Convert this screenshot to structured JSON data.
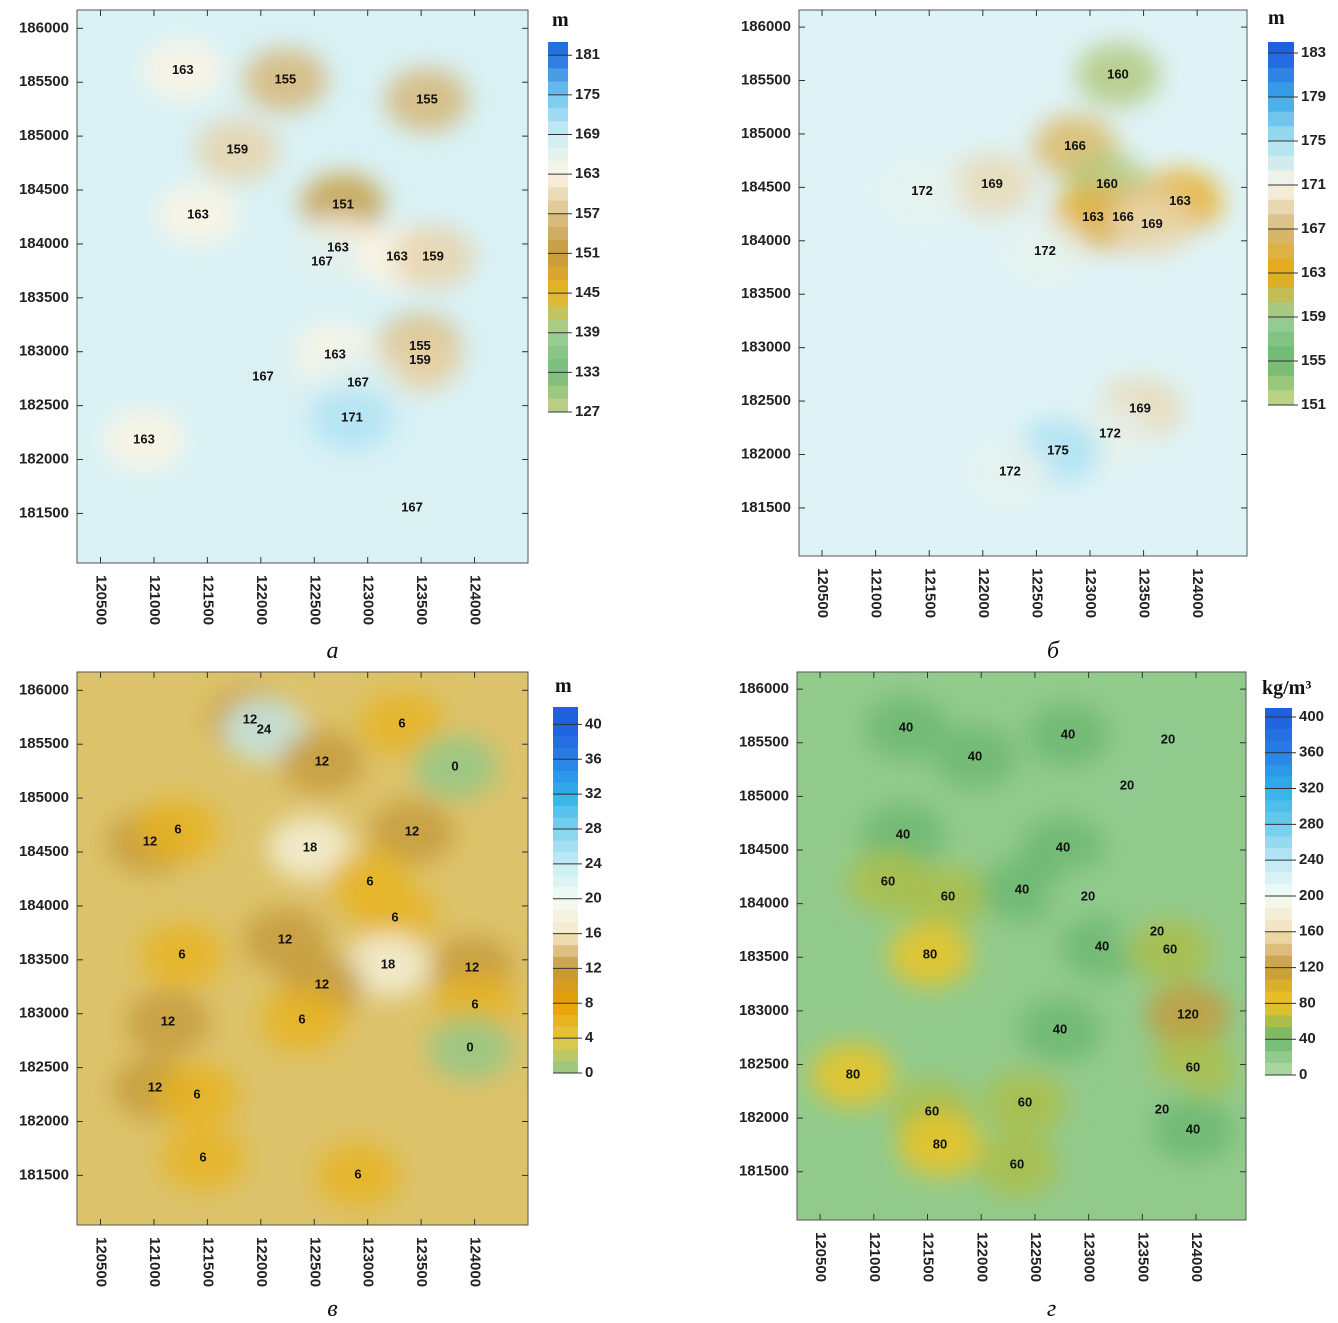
{
  "chart_data": [
    {
      "type": "contour",
      "caption": "а",
      "colorbar_title": "m",
      "xlim": [
        120280,
        124500
      ],
      "ylim": [
        181040,
        186170
      ],
      "xticks": [
        120500,
        121000,
        121500,
        122000,
        122500,
        123000,
        123500,
        124000
      ],
      "yticks": [
        181500,
        182000,
        182500,
        183000,
        183500,
        184000,
        184500,
        185000,
        185500,
        186000
      ],
      "colorbar": {
        "lim": [
          127,
          183
        ],
        "ticks": [
          181,
          175,
          169,
          163,
          157,
          151,
          145,
          139,
          133,
          127
        ],
        "colors": [
          "#2470e0",
          "#72c6ee",
          "#cbeef6",
          "#fcf5e4",
          "#dcc08a",
          "#c49a3c",
          "#e9b422",
          "#9fd197",
          "#76bb78",
          "#c6d38a"
        ]
      },
      "contour_labels": [
        {
          "value": 163,
          "x": 121270,
          "y": 185610
        },
        {
          "value": 155,
          "x": 122230,
          "y": 185520
        },
        {
          "value": 155,
          "x": 123555,
          "y": 185335
        },
        {
          "value": 159,
          "x": 121780,
          "y": 184870
        },
        {
          "value": 163,
          "x": 121412,
          "y": 184270
        },
        {
          "value": 151,
          "x": 122769,
          "y": 184360
        },
        {
          "value": 163,
          "x": 122722,
          "y": 183960
        },
        {
          "value": 167,
          "x": 122572,
          "y": 183830
        },
        {
          "value": 163,
          "x": 123274,
          "y": 183880
        },
        {
          "value": 159,
          "x": 123611,
          "y": 183880
        },
        {
          "value": 155,
          "x": 123489,
          "y": 183050
        },
        {
          "value": 159,
          "x": 123489,
          "y": 182920
        },
        {
          "value": 163,
          "x": 122694,
          "y": 182970
        },
        {
          "value": 167,
          "x": 122909,
          "y": 182710
        },
        {
          "value": 171,
          "x": 122853,
          "y": 182385
        },
        {
          "value": 167,
          "x": 122020,
          "y": 182765
        },
        {
          "value": 163,
          "x": 120907,
          "y": 182180
        },
        {
          "value": 167,
          "x": 123415,
          "y": 181550
        }
      ]
    },
    {
      "type": "contour",
      "caption": "б",
      "colorbar_title": "m",
      "xlim": [
        120285,
        124465
      ],
      "ylim": [
        181050,
        186160
      ],
      "xticks": [
        120500,
        121000,
        121500,
        122000,
        122500,
        123000,
        123500,
        124000
      ],
      "yticks": [
        181500,
        182000,
        182500,
        183000,
        183500,
        184000,
        184500,
        185000,
        185500,
        186000
      ],
      "colorbar": {
        "lim": [
          151,
          184
        ],
        "ticks": [
          183,
          179,
          175,
          171,
          167,
          163,
          159,
          155,
          151
        ],
        "colors": [
          "#1f60e0",
          "#3aa8e8",
          "#a8e0f2",
          "#fbf6ea",
          "#d6b878",
          "#e8aa10",
          "#9ccf9a",
          "#6ab870",
          "#c8d88a"
        ]
      },
      "contour_labels": [
        {
          "value": 160,
          "x": 123261,
          "y": 185553
        },
        {
          "value": 166,
          "x": 122860,
          "y": 184880
        },
        {
          "value": 169,
          "x": 122086,
          "y": 184525
        },
        {
          "value": 172,
          "x": 121433,
          "y": 184460
        },
        {
          "value": 160,
          "x": 123159,
          "y": 184525
        },
        {
          "value": 163,
          "x": 123840,
          "y": 184367
        },
        {
          "value": 163,
          "x": 123028,
          "y": 184217
        },
        {
          "value": 166,
          "x": 123308,
          "y": 184217
        },
        {
          "value": 169,
          "x": 123578,
          "y": 184152
        },
        {
          "value": 172,
          "x": 122580,
          "y": 183900
        },
        {
          "value": 169,
          "x": 123467,
          "y": 182424
        },
        {
          "value": 172,
          "x": 123187,
          "y": 182190
        },
        {
          "value": 175,
          "x": 122701,
          "y": 182032
        },
        {
          "value": 172,
          "x": 122254,
          "y": 181836
        }
      ]
    },
    {
      "type": "contour",
      "caption": "в",
      "colorbar_title": "m",
      "xlim": [
        120280,
        124500
      ],
      "ylim": [
        181040,
        186170
      ],
      "xticks": [
        120500,
        121000,
        121500,
        122000,
        122500,
        123000,
        123500,
        124000
      ],
      "yticks": [
        181500,
        182000,
        182500,
        183000,
        183500,
        184000,
        184500,
        185000,
        185500,
        186000
      ],
      "colorbar": {
        "lim": [
          0,
          42
        ],
        "ticks": [
          40,
          36,
          32,
          28,
          24,
          20,
          16,
          12,
          8,
          4,
          0
        ],
        "colors": [
          "#1f5fe0",
          "#2a7fe6",
          "#2fb0e8",
          "#7fd3ee",
          "#c6ecf4",
          "#f4fbf6",
          "#f6e8c8",
          "#c49a3c",
          "#e8a000",
          "#e6c840",
          "#8fc88a"
        ]
      },
      "contour_labels": [
        {
          "value": 12,
          "x": 121899,
          "y": 185725
        },
        {
          "value": 24,
          "x": 122030,
          "y": 185632
        },
        {
          "value": 6,
          "x": 123321,
          "y": 185687
        },
        {
          "value": 0,
          "x": 123817,
          "y": 185288
        },
        {
          "value": 12,
          "x": 122572,
          "y": 185335
        },
        {
          "value": 12,
          "x": 120963,
          "y": 184592
        },
        {
          "value": 6,
          "x": 121225,
          "y": 184704
        },
        {
          "value": 18,
          "x": 122460,
          "y": 184537
        },
        {
          "value": 12,
          "x": 123415,
          "y": 184685
        },
        {
          "value": 6,
          "x": 123022,
          "y": 184221
        },
        {
          "value": 6,
          "x": 123255,
          "y": 183887
        },
        {
          "value": 12,
          "x": 122226,
          "y": 183683
        },
        {
          "value": 6,
          "x": 121262,
          "y": 183544
        },
        {
          "value": 18,
          "x": 123190,
          "y": 183451
        },
        {
          "value": 12,
          "x": 123976,
          "y": 183423
        },
        {
          "value": 12,
          "x": 122572,
          "y": 183265
        },
        {
          "value": 6,
          "x": 124004,
          "y": 183080
        },
        {
          "value": 6,
          "x": 122385,
          "y": 182941
        },
        {
          "value": 12,
          "x": 121131,
          "y": 182922
        },
        {
          "value": 0,
          "x": 123957,
          "y": 182681
        },
        {
          "value": 12,
          "x": 121010,
          "y": 182310
        },
        {
          "value": 6,
          "x": 121403,
          "y": 182245
        },
        {
          "value": 6,
          "x": 121459,
          "y": 181660
        },
        {
          "value": 6,
          "x": 122909,
          "y": 181502
        }
      ]
    },
    {
      "type": "contour",
      "caption": "г",
      "colorbar_title": "kg/m³",
      "xlim": [
        120285,
        124465
      ],
      "ylim": [
        181050,
        186160
      ],
      "xticks": [
        120500,
        121000,
        121500,
        122000,
        122500,
        123000,
        123500,
        124000
      ],
      "yticks": [
        181500,
        182000,
        182500,
        183000,
        183500,
        184000,
        184500,
        185000,
        185500,
        186000
      ],
      "colorbar": {
        "lim": [
          0,
          410
        ],
        "ticks": [
          400,
          360,
          320,
          280,
          240,
          200,
          160,
          120,
          80,
          40,
          0
        ],
        "colors": [
          "#1f5fe0",
          "#2a80e6",
          "#2fb0e8",
          "#6ccbee",
          "#bde8f4",
          "#f4fbf6",
          "#f4e0b8",
          "#c49a3c",
          "#f0c420",
          "#6ab870",
          "#b6dcaa"
        ]
      },
      "contour_labels": [
        {
          "value": 40,
          "x": 121300,
          "y": 185638
        },
        {
          "value": 40,
          "x": 121942,
          "y": 185367
        },
        {
          "value": 40,
          "x": 122808,
          "y": 185572
        },
        {
          "value": 20,
          "x": 123739,
          "y": 185526
        },
        {
          "value": 20,
          "x": 123357,
          "y": 185096
        },
        {
          "value": 40,
          "x": 121272,
          "y": 184639
        },
        {
          "value": 40,
          "x": 122761,
          "y": 184518
        },
        {
          "value": 60,
          "x": 121132,
          "y": 184201
        },
        {
          "value": 60,
          "x": 121691,
          "y": 184061
        },
        {
          "value": 40,
          "x": 122380,
          "y": 184126
        },
        {
          "value": 20,
          "x": 122994,
          "y": 184061
        },
        {
          "value": 40,
          "x": 123125,
          "y": 183594
        },
        {
          "value": 20,
          "x": 123637,
          "y": 183734
        },
        {
          "value": 60,
          "x": 123758,
          "y": 183566
        },
        {
          "value": 80,
          "x": 121523,
          "y": 183520
        },
        {
          "value": 40,
          "x": 122733,
          "y": 182820
        },
        {
          "value": 120,
          "x": 123925,
          "y": 182960
        },
        {
          "value": 60,
          "x": 123972,
          "y": 182465
        },
        {
          "value": 80,
          "x": 120806,
          "y": 182400
        },
        {
          "value": 20,
          "x": 123683,
          "y": 182073
        },
        {
          "value": 40,
          "x": 123972,
          "y": 181887
        },
        {
          "value": 60,
          "x": 121542,
          "y": 182055
        },
        {
          "value": 60,
          "x": 122408,
          "y": 182139
        },
        {
          "value": 80,
          "x": 121616,
          "y": 181747
        },
        {
          "value": 60,
          "x": 122333,
          "y": 181560
        }
      ]
    }
  ]
}
